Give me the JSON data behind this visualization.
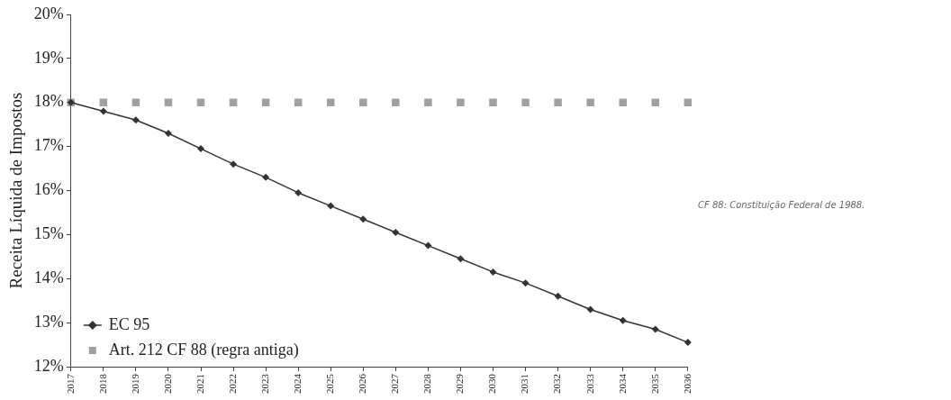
{
  "chart_data": {
    "type": "line",
    "ylabel": "Receita Líquida de Impostos",
    "categories": [
      "2017",
      "2018",
      "2019",
      "2020",
      "2021",
      "2022",
      "2023",
      "2024",
      "2025",
      "2026",
      "2027",
      "2028",
      "2029",
      "2030",
      "2031",
      "2032",
      "2033",
      "2034",
      "2035",
      "2036"
    ],
    "series": [
      {
        "name": "EC 95",
        "color": "#333333",
        "marker": "diamond",
        "values": [
          18.0,
          17.8,
          17.6,
          17.3,
          16.95,
          16.6,
          16.3,
          15.95,
          15.65,
          15.35,
          15.05,
          14.75,
          14.45,
          14.15,
          13.9,
          13.6,
          13.3,
          13.05,
          12.85,
          12.55
        ]
      },
      {
        "name": "Art. 212 CF 88 (regra antiga)",
        "type": "scatter",
        "color": "#a0a0a0",
        "marker": "square",
        "values": [
          18,
          18,
          18,
          18,
          18,
          18,
          18,
          18,
          18,
          18,
          18,
          18,
          18,
          18,
          18,
          18,
          18,
          18,
          18,
          18
        ]
      }
    ],
    "ylim": [
      12,
      20
    ],
    "yticks": [
      {
        "value": 12,
        "label": "12%"
      },
      {
        "value": 13,
        "label": "13%"
      },
      {
        "value": 14,
        "label": "14%"
      },
      {
        "value": 15,
        "label": "15%"
      },
      {
        "value": 16,
        "label": "16%"
      },
      {
        "value": 17,
        "label": "17%"
      },
      {
        "value": 18,
        "label": "18%"
      },
      {
        "value": 19,
        "label": "19%"
      },
      {
        "value": 20,
        "label": "20%"
      }
    ],
    "grid": false,
    "legend": "bottom left",
    "annotations": [
      "CF 88: Constituição Federal de 1988."
    ]
  }
}
